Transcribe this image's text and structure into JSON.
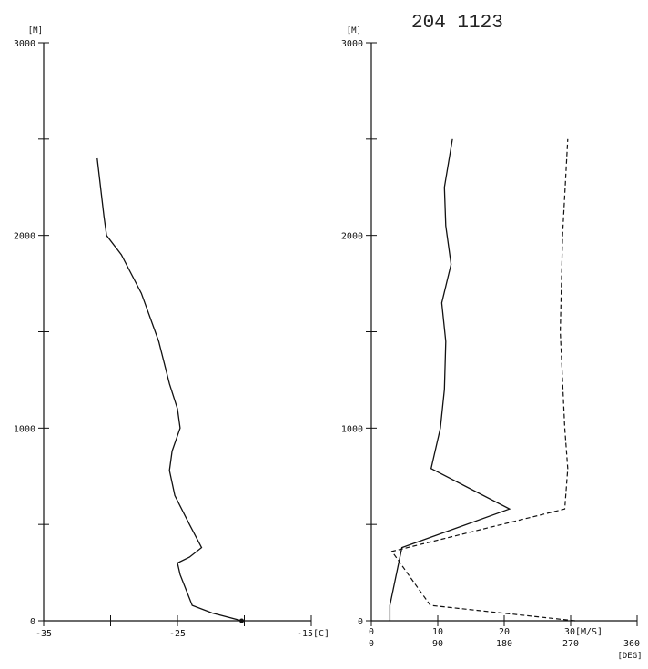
{
  "header": {
    "code": "204  1123"
  },
  "chart_data": [
    {
      "type": "line",
      "title": "",
      "ylabel": "[M]",
      "xlabel": "-15[C]",
      "ylim": [
        0,
        3000
      ],
      "xlim": [
        -35,
        -15
      ],
      "yticks": [
        0,
        500,
        1000,
        1500,
        2000,
        2500,
        3000
      ],
      "ytick_labels": [
        "0",
        "",
        "1000",
        "",
        "2000",
        "",
        "3000"
      ],
      "xticks": [
        -35,
        -30,
        -25,
        -20,
        -15
      ],
      "xtick_labels": [
        "-35",
        "",
        "-25",
        "",
        ""
      ],
      "series": [
        {
          "style": "solid",
          "points": [
            {
              "x": -20.2,
              "y": 0
            },
            {
              "x": -22.4,
              "y": 40
            },
            {
              "x": -23.9,
              "y": 80
            },
            {
              "x": -24.8,
              "y": 240
            },
            {
              "x": -25.0,
              "y": 300
            },
            {
              "x": -24.1,
              "y": 330
            },
            {
              "x": -23.2,
              "y": 380
            },
            {
              "x": -24.1,
              "y": 500
            },
            {
              "x": -25.2,
              "y": 650
            },
            {
              "x": -25.6,
              "y": 780
            },
            {
              "x": -25.4,
              "y": 880
            },
            {
              "x": -24.8,
              "y": 1000
            },
            {
              "x": -25.0,
              "y": 1100
            },
            {
              "x": -25.6,
              "y": 1230
            },
            {
              "x": -26.4,
              "y": 1450
            },
            {
              "x": -27.7,
              "y": 1700
            },
            {
              "x": -29.2,
              "y": 1900
            },
            {
              "x": -30.3,
              "y": 2000
            },
            {
              "x": -30.5,
              "y": 2100
            },
            {
              "x": -31.0,
              "y": 2400
            }
          ]
        }
      ]
    },
    {
      "type": "line",
      "title": "",
      "ylabel": "[M]",
      "xlabel_speed": "30[M/S]",
      "xlabel_dir": "[DEG]",
      "ylim": [
        0,
        3000
      ],
      "xlim_speed": [
        0,
        40
      ],
      "xlim_dir": [
        0,
        360
      ],
      "yticks": [
        0,
        500,
        1000,
        1500,
        2000,
        2500,
        3000
      ],
      "ytick_labels": [
        "0",
        "",
        "1000",
        "",
        "2000",
        "",
        "3000"
      ],
      "xticks_speed": [
        0,
        10,
        20,
        30,
        40
      ],
      "xtick_labels_speed": [
        "0",
        "10",
        "20",
        "",
        ""
      ],
      "xtick_labels_dir": [
        "0",
        "90",
        "180",
        "270",
        "360"
      ],
      "series": [
        {
          "style": "solid",
          "units": "M/S",
          "points": [
            {
              "x": 2.8,
              "y": 0
            },
            {
              "x": 2.8,
              "y": 80
            },
            {
              "x": 4.6,
              "y": 380
            },
            {
              "x": 20.8,
              "y": 580
            },
            {
              "x": 9.0,
              "y": 790
            },
            {
              "x": 10.4,
              "y": 1000
            },
            {
              "x": 11.0,
              "y": 1200
            },
            {
              "x": 11.2,
              "y": 1450
            },
            {
              "x": 10.6,
              "y": 1650
            },
            {
              "x": 12.0,
              "y": 1850
            },
            {
              "x": 11.2,
              "y": 2050
            },
            {
              "x": 11.0,
              "y": 2250
            },
            {
              "x": 12.2,
              "y": 2500
            }
          ]
        },
        {
          "style": "dashed",
          "units": "DEG",
          "points": [
            {
              "x": 276,
              "y": 0
            },
            {
              "x": 80,
              "y": 80
            },
            {
              "x": 52,
              "y": 230
            },
            {
              "x": 28,
              "y": 360
            },
            {
              "x": 262,
              "y": 580
            },
            {
              "x": 266,
              "y": 790
            },
            {
              "x": 262,
              "y": 1000
            },
            {
              "x": 256,
              "y": 1500
            },
            {
              "x": 259,
              "y": 2000
            },
            {
              "x": 266,
              "y": 2500
            }
          ]
        }
      ]
    }
  ]
}
